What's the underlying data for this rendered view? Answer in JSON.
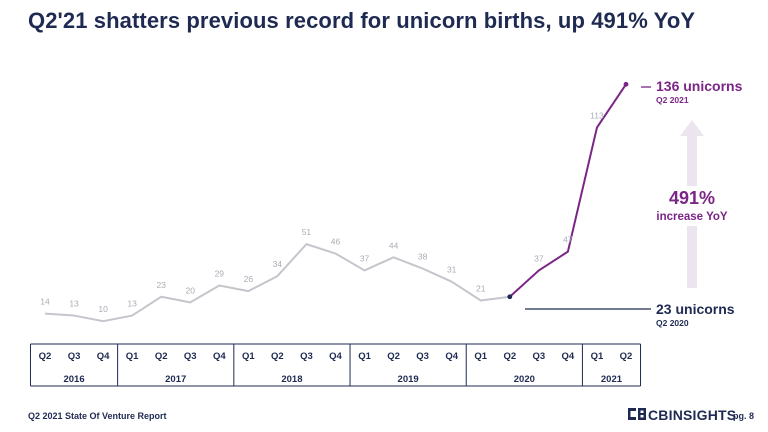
{
  "title": "Q2'21 shatters previous record for unicorn births, up 491% YoY",
  "footer": {
    "report": "Q2 2021 State Of Venture Report",
    "brand": "CBINSIGHTS",
    "page": "pg. 8"
  },
  "annotations": {
    "peak_value": "136 unicorns",
    "peak_period": "Q2 2021",
    "base_value": "23 unicorns",
    "base_period": "Q2 2020",
    "increase_pct": "491%",
    "increase_label": "increase YoY"
  },
  "colors": {
    "title": "#1f2a52",
    "gray_series": "#c4c6cc",
    "purple_series": "#7b2586",
    "arrow": "#ece4ef",
    "axis_text": "#1f2a52",
    "value_labels": "#a9adb6"
  },
  "chart_data": {
    "type": "line",
    "title": "Q2'21 shatters previous record for unicorn births, up 491% YoY",
    "xlabel": "",
    "ylabel": "",
    "categories": [
      "Q2",
      "Q3",
      "Q4",
      "Q1",
      "Q2",
      "Q3",
      "Q4",
      "Q1",
      "Q2",
      "Q3",
      "Q4",
      "Q1",
      "Q2",
      "Q3",
      "Q4",
      "Q1",
      "Q2",
      "Q3",
      "Q4",
      "Q1",
      "Q2"
    ],
    "year_groups": [
      {
        "label": "2016",
        "count": 3
      },
      {
        "label": "2017",
        "count": 4
      },
      {
        "label": "2018",
        "count": 4
      },
      {
        "label": "2019",
        "count": 4
      },
      {
        "label": "2020",
        "count": 4
      },
      {
        "label": "2021",
        "count": 2
      }
    ],
    "series": [
      {
        "values": [
          14,
          13,
          10,
          13,
          23,
          20,
          29,
          26,
          34,
          51,
          46,
          37,
          44,
          38,
          31,
          21,
          23,
          37,
          47,
          113,
          136
        ]
      }
    ],
    "highlight_from_index": 16,
    "shown_labels": [
      14,
      13,
      10,
      13,
      23,
      20,
      29,
      26,
      34,
      51,
      46,
      37,
      44,
      38,
      31,
      21,
      null,
      37,
      47,
      113,
      null
    ],
    "ylim": [
      0,
      150
    ],
    "grid": false,
    "legend": "none"
  }
}
